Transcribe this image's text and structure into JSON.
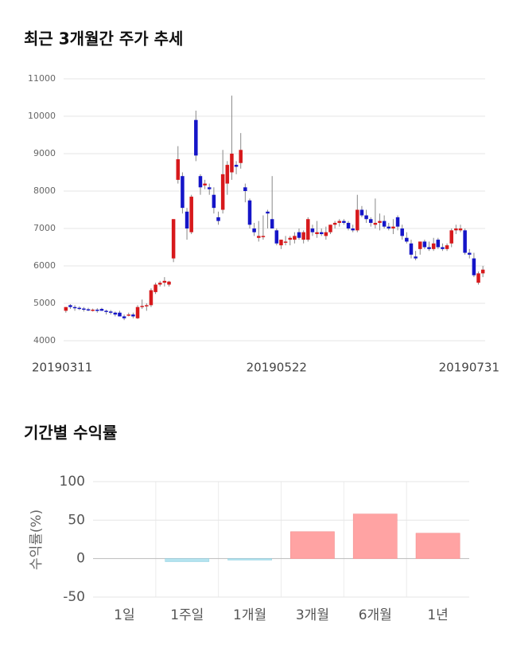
{
  "chart_data": [
    {
      "type": "candlestick",
      "title": "최근 3개월간 주가 추세",
      "categories": [
        "20190311",
        null,
        null,
        null,
        null,
        null,
        null,
        null,
        null,
        null,
        null,
        null,
        null,
        null,
        null,
        null,
        null,
        null,
        null,
        null,
        null,
        null,
        null,
        null,
        null,
        null,
        null,
        null,
        null,
        null,
        null,
        null,
        null,
        null,
        null,
        null,
        null,
        null,
        null,
        null,
        null,
        null,
        null,
        null,
        null,
        null,
        null,
        "20190522",
        null,
        null,
        null,
        null,
        null,
        null,
        null,
        null,
        null,
        null,
        null,
        null,
        null,
        null,
        null,
        null,
        null,
        null,
        null,
        null,
        null,
        null,
        null,
        null,
        null,
        null,
        null,
        null,
        null,
        null,
        null,
        null,
        null,
        null,
        null,
        null,
        null,
        null,
        null,
        null,
        null,
        null,
        null,
        null,
        null,
        "20190731"
      ],
      "open": [
        4800,
        4950,
        4900,
        4880,
        4860,
        4840,
        4820,
        4830,
        4850,
        4800,
        4780,
        4750,
        4750,
        4650,
        4700,
        4700,
        4600,
        4900,
        4930,
        4950,
        5300,
        5500,
        5550,
        5500,
        6200,
        8300,
        8400,
        7450,
        6900,
        9900,
        8400,
        8150,
        8100,
        7900,
        7300,
        7500,
        8200,
        8500,
        8700,
        8750,
        8100,
        7750,
        7000,
        6750,
        6800,
        7450,
        7250,
        6950,
        6550,
        6650,
        6700,
        6700,
        6900,
        6700,
        6700,
        7000,
        6850,
        6900,
        6800,
        6900,
        7100,
        7150,
        7200,
        7150,
        7000,
        6950,
        7500,
        7350,
        7250,
        7100,
        7150,
        7200,
        7050,
        7000,
        7300,
        7000,
        6750,
        6600,
        6250,
        6450,
        6650,
        6500,
        6450,
        6700,
        6500,
        6450,
        6600,
        6950,
        6950,
        6950,
        6350,
        6200,
        5550,
        5800
      ],
      "high": [
        4900,
        4980,
        4950,
        4920,
        4900,
        4880,
        4860,
        4870,
        4880,
        4830,
        4820,
        4780,
        4800,
        4700,
        4750,
        4750,
        4950,
        5100,
        5000,
        5400,
        5550,
        5600,
        5700,
        5600,
        7250,
        9200,
        8500,
        7550,
        7900,
        10150,
        8450,
        8300,
        8200,
        8100,
        7450,
        9100,
        8800,
        10550,
        8800,
        9550,
        8200,
        7800,
        7150,
        7200,
        7350,
        7500,
        8400,
        7000,
        6700,
        6800,
        6800,
        6900,
        7000,
        6950,
        7300,
        7100,
        7200,
        7000,
        7050,
        7100,
        7200,
        7250,
        7250,
        7200,
        7100,
        7900,
        7600,
        7500,
        7300,
        7800,
        7400,
        7350,
        7150,
        7250,
        7350,
        7100,
        6900,
        6700,
        6400,
        6650,
        6700,
        6650,
        6750,
        6750,
        6600,
        6600,
        7000,
        7100,
        7100,
        7000,
        6450,
        6350,
        5850,
        6000
      ],
      "low": [
        4750,
        4850,
        4800,
        4820,
        4780,
        4790,
        4780,
        4750,
        4800,
        4700,
        4700,
        4650,
        4650,
        4550,
        4650,
        4600,
        4580,
        4850,
        4800,
        4900,
        5250,
        5450,
        5450,
        5450,
        6100,
        8200,
        7400,
        6700,
        6850,
        8800,
        7900,
        8050,
        7900,
        7400,
        7100,
        7400,
        7900,
        8300,
        8450,
        8600,
        7700,
        7000,
        6800,
        6650,
        6700,
        7000,
        7000,
        6550,
        6450,
        6550,
        6550,
        6600,
        6700,
        6600,
        6650,
        6800,
        6750,
        6800,
        6700,
        6850,
        7000,
        7050,
        7100,
        6950,
        6900,
        6900,
        7300,
        7150,
        7050,
        7000,
        6950,
        7000,
        6950,
        6850,
        6950,
        6700,
        6600,
        6200,
        6150,
        6300,
        6450,
        6400,
        6400,
        6450,
        6400,
        6400,
        6500,
        6850,
        6900,
        6300,
        6200,
        5700,
        5500,
        5700
      ],
      "close": [
        4900,
        4900,
        4880,
        4860,
        4840,
        4820,
        4830,
        4800,
        4800,
        4780,
        4750,
        4700,
        4650,
        4600,
        4700,
        4650,
        4900,
        4930,
        4950,
        5350,
        5500,
        5550,
        5600,
        5580,
        7250,
        8850,
        7550,
        7000,
        7850,
        8950,
        8100,
        8200,
        8050,
        7550,
        7200,
        8450,
        8700,
        9000,
        8650,
        9100,
        8000,
        7100,
        6900,
        6800,
        6800,
        7400,
        7000,
        6600,
        6700,
        6650,
        6750,
        6800,
        6750,
        6900,
        7250,
        6900,
        6900,
        6850,
        6900,
        7100,
        7150,
        7200,
        7150,
        7000,
        6950,
        7500,
        7350,
        7250,
        7150,
        7150,
        7200,
        7050,
        7000,
        7050,
        7050,
        6800,
        6650,
        6300,
        6200,
        6650,
        6500,
        6450,
        6600,
        6500,
        6450,
        6550,
        6950,
        7000,
        7000,
        6350,
        6300,
        5750,
        5800,
        5900
      ],
      "up_color": "#d7191c",
      "down_color": "#1515c8",
      "ylim": [
        4000,
        11000
      ],
      "yticks": [
        4000,
        5000,
        6000,
        7000,
        8000,
        9000,
        10000,
        11000
      ],
      "grid": true
    },
    {
      "type": "bar",
      "title": "기간별 수익률",
      "ylabel": "수익률(%)",
      "categories": [
        "1일",
        "1주일",
        "1개월",
        "3개월",
        "6개월",
        "1년"
      ],
      "values": [
        0,
        -4,
        -2,
        35,
        58,
        33
      ],
      "positive_color": "#ffa3a3",
      "negative_color": "#b3e3ef",
      "ylim": [
        -50,
        100
      ],
      "yticks": [
        -50,
        0,
        50,
        100
      ],
      "grid": true
    }
  ]
}
